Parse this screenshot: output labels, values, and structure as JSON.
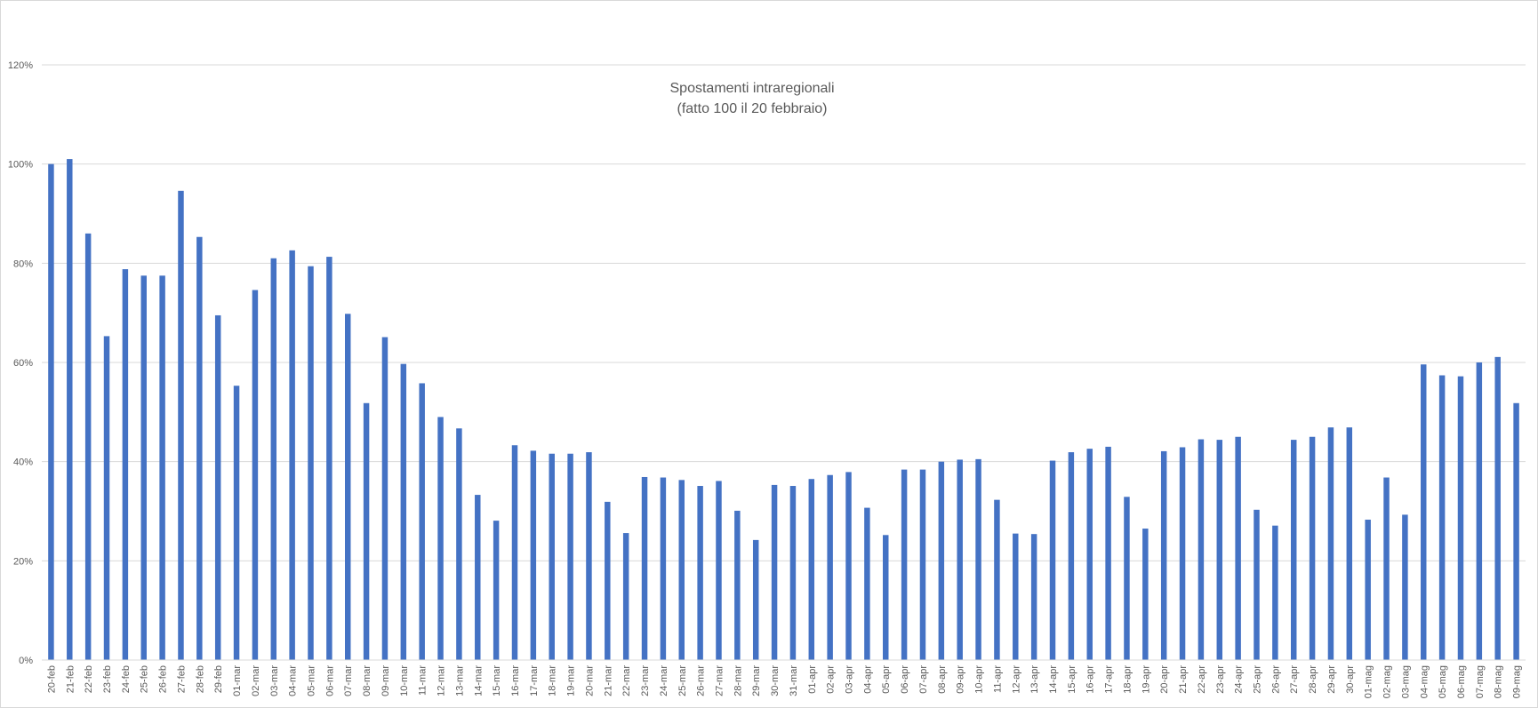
{
  "chart_data": {
    "type": "bar",
    "title": "Spostamenti intraregionali",
    "subtitle": "(fatto 100 il 20 febbraio)",
    "xlabel": "",
    "ylabel": "",
    "ylim": [
      0,
      120
    ],
    "yticks": [
      "0%",
      "20%",
      "40%",
      "60%",
      "80%",
      "100%",
      "120%"
    ],
    "grid": true,
    "legend": "none",
    "bar_color": "#4472C4",
    "categories": [
      "20-feb",
      "21-feb",
      "22-feb",
      "23-feb",
      "24-feb",
      "25-feb",
      "26-feb",
      "27-feb",
      "28-feb",
      "29-feb",
      "01-mar",
      "02-mar",
      "03-mar",
      "04-mar",
      "05-mar",
      "06-mar",
      "07-mar",
      "08-mar",
      "09-mar",
      "10-mar",
      "11-mar",
      "12-mar",
      "13-mar",
      "14-mar",
      "15-mar",
      "16-mar",
      "17-mar",
      "18-mar",
      "19-mar",
      "20-mar",
      "21-mar",
      "22-mar",
      "23-mar",
      "24-mar",
      "25-mar",
      "26-mar",
      "27-mar",
      "28-mar",
      "29-mar",
      "30-mar",
      "31-mar",
      "01-apr",
      "02-apr",
      "03-apr",
      "04-apr",
      "05-apr",
      "06-apr",
      "07-apr",
      "08-apr",
      "09-apr",
      "10-apr",
      "11-apr",
      "12-apr",
      "13-apr",
      "14-apr",
      "15-apr",
      "16-apr",
      "17-apr",
      "18-apr",
      "19-apr",
      "20-apr",
      "21-apr",
      "22-apr",
      "23-apr",
      "24-apr",
      "25-apr",
      "26-apr",
      "27-apr",
      "28-apr",
      "29-apr",
      "30-apr",
      "01-mag",
      "02-mag",
      "03-mag",
      "04-mag",
      "05-mag",
      "06-mag",
      "07-mag",
      "08-mag",
      "09-mag"
    ],
    "values": [
      100,
      101,
      86,
      65.3,
      78.8,
      77.5,
      77.5,
      94.6,
      85.3,
      69.5,
      55.3,
      74.6,
      81,
      82.6,
      79.4,
      81.3,
      69.8,
      51.8,
      65.1,
      59.7,
      55.8,
      49,
      46.7,
      33.3,
      28.1,
      43.3,
      42.2,
      41.6,
      41.6,
      41.9,
      31.9,
      25.6,
      36.9,
      36.8,
      36.3,
      35.1,
      36.1,
      30.1,
      24.2,
      35.3,
      35.1,
      36.5,
      37.3,
      37.9,
      30.7,
      25.2,
      38.4,
      38.4,
      40,
      40.4,
      40.5,
      32.3,
      25.5,
      25.4,
      40.2,
      41.9,
      42.6,
      43,
      32.9,
      26.5,
      42.1,
      42.9,
      44.5,
      44.4,
      45,
      30.3,
      27.1,
      44.4,
      45,
      46.9,
      46.9,
      28.3,
      36.8,
      29.3,
      59.6,
      57.4,
      57.2,
      60,
      61.1,
      51.8
    ]
  }
}
